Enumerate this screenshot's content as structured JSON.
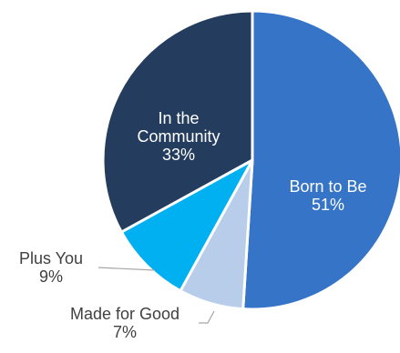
{
  "chart_data": {
    "type": "pie",
    "title": "",
    "slices": [
      {
        "label_lines": [
          "Born to Be"
        ],
        "pct_text": "51%",
        "value": 51,
        "color": "#3674c8",
        "label_color": "#ffffff",
        "label_placement": "inside"
      },
      {
        "label_lines": [
          "Made for Good"
        ],
        "pct_text": "7%",
        "value": 7,
        "color": "#b7cdea",
        "label_color": "#404040",
        "label_placement": "outside"
      },
      {
        "label_lines": [
          "Plus You"
        ],
        "pct_text": "9%",
        "value": 9,
        "color": "#00b0f0",
        "label_color": "#404040",
        "label_placement": "outside"
      },
      {
        "label_lines": [
          "In the",
          "Community"
        ],
        "pct_text": "33%",
        "value": 33,
        "color": "#243d5f",
        "label_color": "#ffffff",
        "label_placement": "inside"
      }
    ],
    "start_angle": "12 o'clock",
    "direction": "clockwise",
    "border_color": "#ffffff",
    "leader_line_color": "#a6a6a6"
  }
}
